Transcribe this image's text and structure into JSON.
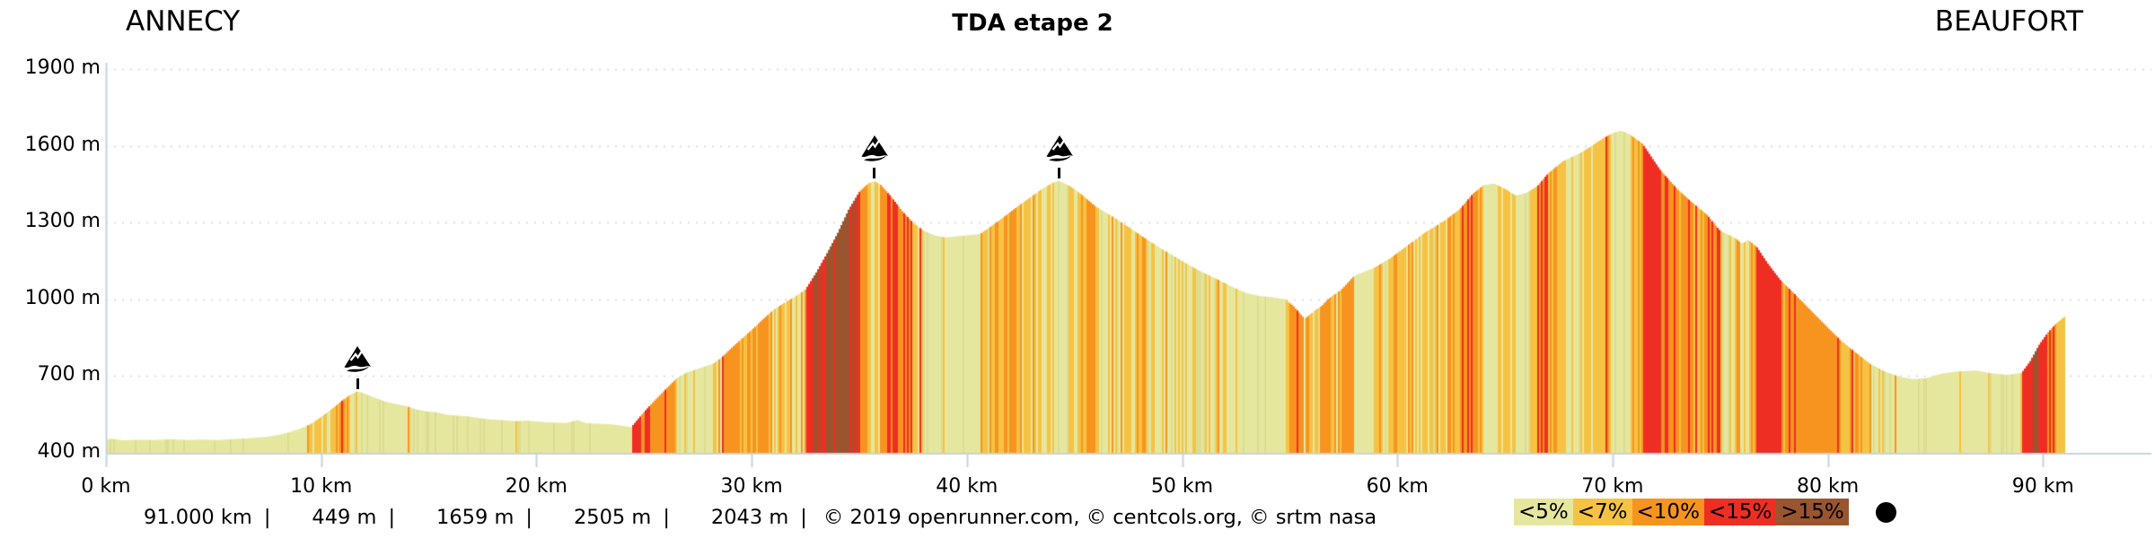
{
  "header": {
    "start_label": "ANNECY",
    "title": "TDA etape 2",
    "end_label": "BEAUFORT"
  },
  "footer": {
    "values": [
      "91.000 km",
      "449 m",
      "1659 m",
      "2505 m",
      "2043 m"
    ],
    "separator": "|",
    "credits": "© 2019 openrunner.com, © centcols.org, © srtm nasa"
  },
  "legend": {
    "items": [
      {
        "label": "<5%",
        "color": "#e6e79e"
      },
      {
        "label": "<7%",
        "color": "#f6c243"
      },
      {
        "label": "<10%",
        "color": "#f79420"
      },
      {
        "label": "<15%",
        "color": "#ee2e23"
      },
      {
        "label": ">15%",
        "color": "#99552e"
      }
    ],
    "marker_color": "#000000"
  },
  "chart_data": {
    "type": "area",
    "title": "TDA etape 2",
    "start": "ANNECY",
    "end": "BEAUFORT",
    "x_unit": "km",
    "y_unit": "m",
    "x_ticks": [
      0,
      10,
      20,
      30,
      40,
      50,
      60,
      70,
      80,
      90
    ],
    "y_ticks": [
      400,
      700,
      1000,
      1300,
      1600,
      1900
    ],
    "xlim": [
      0,
      91.0
    ],
    "ylim": [
      400,
      1900
    ],
    "distance_km": 91.0,
    "min_altitude_m": 449,
    "max_altitude_m": 1659,
    "total_ascent_m": 2505,
    "total_descent_m": 2043,
    "grid": "dotted",
    "axis_color": "#c6d2e2",
    "grid_color": "#d4d4d4",
    "gradient_thresholds_pct": [
      5,
      7,
      10,
      15
    ],
    "gradient_colors": {
      "lt5": "#e6e79e",
      "lt5_shade": "#dcdd92",
      "lt7": "#f6c243",
      "lt10": "#f79420",
      "lt15": "#ee2e23",
      "gt15": "#99552e"
    },
    "cols": [
      {
        "km": 11.7,
        "alt": 640
      },
      {
        "km": 35.7,
        "alt": 1462
      },
      {
        "km": 44.3,
        "alt": 1463
      }
    ],
    "profile": [
      [
        0,
        452
      ],
      [
        0.3,
        455
      ],
      [
        0.8,
        449
      ],
      [
        1.5,
        451
      ],
      [
        2.2,
        450
      ],
      [
        3,
        453
      ],
      [
        3.8,
        450
      ],
      [
        4.5,
        452
      ],
      [
        5.2,
        450
      ],
      [
        6,
        454
      ],
      [
        6.8,
        458
      ],
      [
        7.5,
        463
      ],
      [
        8,
        470
      ],
      [
        8.5,
        480
      ],
      [
        9,
        494
      ],
      [
        9.5,
        512
      ],
      [
        10,
        540
      ],
      [
        10.5,
        572
      ],
      [
        11,
        606
      ],
      [
        11.4,
        630
      ],
      [
        11.7,
        640
      ],
      [
        12,
        632
      ],
      [
        12.5,
        615
      ],
      [
        13,
        600
      ],
      [
        13.5,
        590
      ],
      [
        13.9,
        584
      ],
      [
        14.4,
        570
      ],
      [
        14.9,
        562
      ],
      [
        15.4,
        558
      ],
      [
        15.9,
        548
      ],
      [
        16.4,
        545
      ],
      [
        16.9,
        542
      ],
      [
        17.4,
        535
      ],
      [
        17.9,
        530
      ],
      [
        18.4,
        528
      ],
      [
        19,
        524
      ],
      [
        19.6,
        526
      ],
      [
        20.2,
        521
      ],
      [
        20.8,
        518
      ],
      [
        21.4,
        517
      ],
      [
        21.9,
        528
      ],
      [
        22.3,
        516
      ],
      [
        22.8,
        514
      ],
      [
        23.4,
        512
      ],
      [
        24,
        506
      ],
      [
        24.4,
        500
      ],
      [
        25,
        560
      ],
      [
        25.5,
        605
      ],
      [
        26,
        648
      ],
      [
        26.5,
        690
      ],
      [
        27,
        715
      ],
      [
        27.6,
        731
      ],
      [
        28.2,
        748
      ],
      [
        28.6,
        772
      ],
      [
        29,
        805
      ],
      [
        29.5,
        843
      ],
      [
        30,
        880
      ],
      [
        30.5,
        920
      ],
      [
        31,
        958
      ],
      [
        31.5,
        985
      ],
      [
        32,
        1010
      ],
      [
        32.5,
        1038
      ],
      [
        33,
        1105
      ],
      [
        33.5,
        1180
      ],
      [
        34,
        1260
      ],
      [
        34.5,
        1350
      ],
      [
        35,
        1420
      ],
      [
        35.4,
        1452
      ],
      [
        35.7,
        1462
      ],
      [
        36,
        1448
      ],
      [
        36.5,
        1400
      ],
      [
        37,
        1345
      ],
      [
        37.5,
        1300
      ],
      [
        38,
        1268
      ],
      [
        38.5,
        1250
      ],
      [
        39,
        1242
      ],
      [
        39.6,
        1247
      ],
      [
        40.2,
        1252
      ],
      [
        40.6,
        1255
      ],
      [
        41,
        1278
      ],
      [
        41.5,
        1308
      ],
      [
        42,
        1340
      ],
      [
        42.5,
        1372
      ],
      [
        43,
        1402
      ],
      [
        43.5,
        1432
      ],
      [
        44,
        1456
      ],
      [
        44.3,
        1463
      ],
      [
        44.8,
        1442
      ],
      [
        45.3,
        1412
      ],
      [
        46,
        1362
      ],
      [
        46.8,
        1322
      ],
      [
        47.6,
        1278
      ],
      [
        48.4,
        1232
      ],
      [
        49.2,
        1190
      ],
      [
        50,
        1150
      ],
      [
        50.8,
        1112
      ],
      [
        51.6,
        1080
      ],
      [
        52.4,
        1046
      ],
      [
        53,
        1024
      ],
      [
        53.6,
        1013
      ],
      [
        54.2,
        1008
      ],
      [
        54.8,
        1000
      ],
      [
        55.2,
        972
      ],
      [
        55.7,
        924
      ],
      [
        56.1,
        952
      ],
      [
        56.5,
        975
      ],
      [
        56.8,
        1002
      ],
      [
        57.4,
        1038
      ],
      [
        58,
        1092
      ],
      [
        58.9,
        1122
      ],
      [
        59.7,
        1162
      ],
      [
        60.4,
        1206
      ],
      [
        61.3,
        1262
      ],
      [
        62.1,
        1302
      ],
      [
        62.9,
        1352
      ],
      [
        63.5,
        1412
      ],
      [
        64,
        1446
      ],
      [
        64.5,
        1453
      ],
      [
        65,
        1432
      ],
      [
        65.5,
        1406
      ],
      [
        66,
        1416
      ],
      [
        66.5,
        1442
      ],
      [
        67,
        1492
      ],
      [
        67.7,
        1540
      ],
      [
        68.5,
        1572
      ],
      [
        69,
        1598
      ],
      [
        69.5,
        1626
      ],
      [
        70,
        1650
      ],
      [
        70.4,
        1659
      ],
      [
        70.8,
        1645
      ],
      [
        71.4,
        1608
      ],
      [
        72.2,
        1508
      ],
      [
        73,
        1432
      ],
      [
        73.6,
        1386
      ],
      [
        74.4,
        1330
      ],
      [
        75,
        1268
      ],
      [
        75.7,
        1240
      ],
      [
        76,
        1218
      ],
      [
        76.3,
        1232
      ],
      [
        76.7,
        1206
      ],
      [
        77.2,
        1142
      ],
      [
        77.8,
        1076
      ],
      [
        78.5,
        1018
      ],
      [
        79.2,
        958
      ],
      [
        80,
        890
      ],
      [
        80.6,
        840
      ],
      [
        81.3,
        792
      ],
      [
        82,
        746
      ],
      [
        82.7,
        716
      ],
      [
        83.4,
        696
      ],
      [
        84,
        688
      ],
      [
        84.6,
        692
      ],
      [
        85.3,
        710
      ],
      [
        86,
        718
      ],
      [
        86.9,
        722
      ],
      [
        87.5,
        712
      ],
      [
        88.3,
        705
      ],
      [
        89,
        712
      ],
      [
        89.4,
        758
      ],
      [
        89.8,
        820
      ],
      [
        90.2,
        868
      ],
      [
        90.6,
        905
      ],
      [
        91,
        932
      ]
    ]
  }
}
